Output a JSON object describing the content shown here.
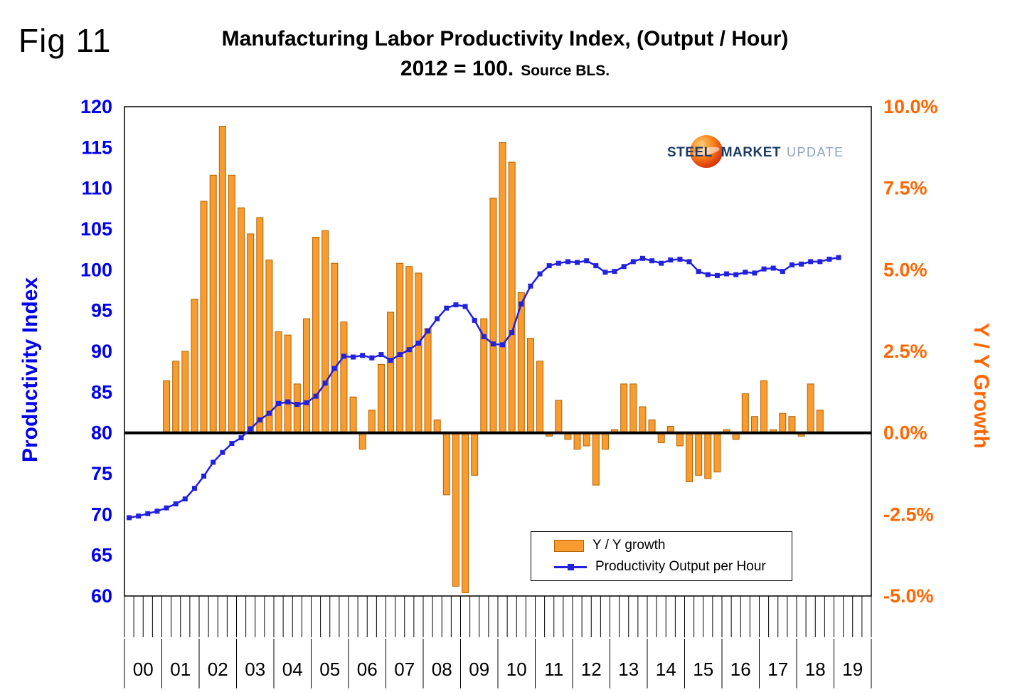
{
  "fig_label": "Fig 11",
  "title": "Manufacturing Labor Productivity Index, (Output / Hour)",
  "subtitle": "2012 = 100.",
  "source": "Source BLS.",
  "logo": {
    "word1": "STEEL",
    "word2": "MARKET",
    "word3": "UPDATE"
  },
  "legend": {
    "bar_label": "Y / Y growth",
    "line_label": "Productivity Output per Hour"
  },
  "left_axis": {
    "title": "Productivity Index",
    "min": 60,
    "max": 120,
    "tick_step": 5,
    "tick_labels": [
      "60",
      "65",
      "70",
      "75",
      "80",
      "85",
      "90",
      "95",
      "100",
      "105",
      "110",
      "115",
      "120"
    ]
  },
  "right_axis": {
    "title": "Y / Y Growth",
    "min": -5,
    "max": 10,
    "tick_values": [
      -5,
      -2.5,
      0,
      2.5,
      5,
      7.5,
      10
    ],
    "tick_labels": [
      "-5.0%",
      "-2.5%",
      "0.0%",
      "2.5%",
      "5.0%",
      "7.5%",
      "10.0%"
    ]
  },
  "colors": {
    "bar_fill": "#F89B30",
    "bar_stroke": "#B26300",
    "line": "#2121DE",
    "left_axis_text": "#0000EE",
    "right_axis_text": "#FF6600",
    "zero_line": "#000000",
    "axis_text": "#000000"
  },
  "chart_data": {
    "type": "combo-bar-line",
    "x_unit": "quarter",
    "years": [
      "00",
      "01",
      "02",
      "03",
      "04",
      "05",
      "06",
      "07",
      "08",
      "09",
      "10",
      "11",
      "12",
      "13",
      "14",
      "15",
      "16",
      "17",
      "18",
      "19"
    ],
    "series": [
      {
        "name": "Y / Y growth",
        "type": "bar",
        "axis": "right",
        "start": "2001-Q1",
        "start_quarter_index": 4,
        "values": [
          1.6,
          2.2,
          2.5,
          4.1,
          7.1,
          7.9,
          9.4,
          7.9,
          6.9,
          6.1,
          6.6,
          5.3,
          3.1,
          3.0,
          1.5,
          3.5,
          6.0,
          6.2,
          5.2,
          3.4,
          1.1,
          -0.5,
          0.7,
          2.1,
          3.7,
          5.2,
          5.1,
          4.9,
          3.2,
          0.4,
          -1.9,
          -4.7,
          -4.9,
          -1.3,
          3.5,
          7.2,
          8.9,
          8.3,
          4.3,
          2.9,
          2.2,
          -0.1,
          1.0,
          -0.2,
          -0.5,
          -0.4,
          -1.6,
          -0.5,
          0.1,
          1.5,
          1.5,
          0.8,
          0.4,
          -0.3,
          0.2,
          -0.4,
          -1.5,
          -1.3,
          -1.4,
          -1.2,
          0.1,
          -0.2,
          1.2,
          0.5,
          1.6,
          0.1,
          0.6,
          0.5,
          -0.1,
          1.5,
          0.7
        ]
      },
      {
        "name": "Productivity Output per Hour",
        "type": "line",
        "axis": "left",
        "start": "2000-Q1",
        "start_quarter_index": 0,
        "values": [
          69.6,
          69.8,
          70.1,
          70.4,
          70.8,
          71.3,
          71.9,
          73.2,
          74.7,
          76.4,
          77.6,
          78.7,
          79.4,
          80.5,
          81.6,
          82.4,
          83.6,
          83.8,
          83.5,
          83.7,
          84.5,
          86.1,
          87.9,
          89.4,
          89.3,
          89.5,
          89.2,
          89.6,
          88.9,
          89.6,
          90.2,
          91.0,
          92.5,
          94.0,
          95.3,
          95.7,
          95.5,
          93.8,
          91.8,
          90.9,
          90.8,
          92.3,
          95.8,
          98.0,
          99.5,
          100.5,
          100.8,
          101.0,
          100.9,
          101.1,
          100.5,
          99.7,
          99.8,
          100.4,
          101.0,
          101.4,
          101.1,
          100.8,
          101.2,
          101.3,
          101.0,
          99.8,
          99.4,
          99.3,
          99.5,
          99.4,
          99.7,
          99.6,
          100.1,
          100.2,
          99.8,
          100.6,
          100.7,
          101.0,
          101.0,
          101.3,
          101.5
        ]
      }
    ]
  }
}
